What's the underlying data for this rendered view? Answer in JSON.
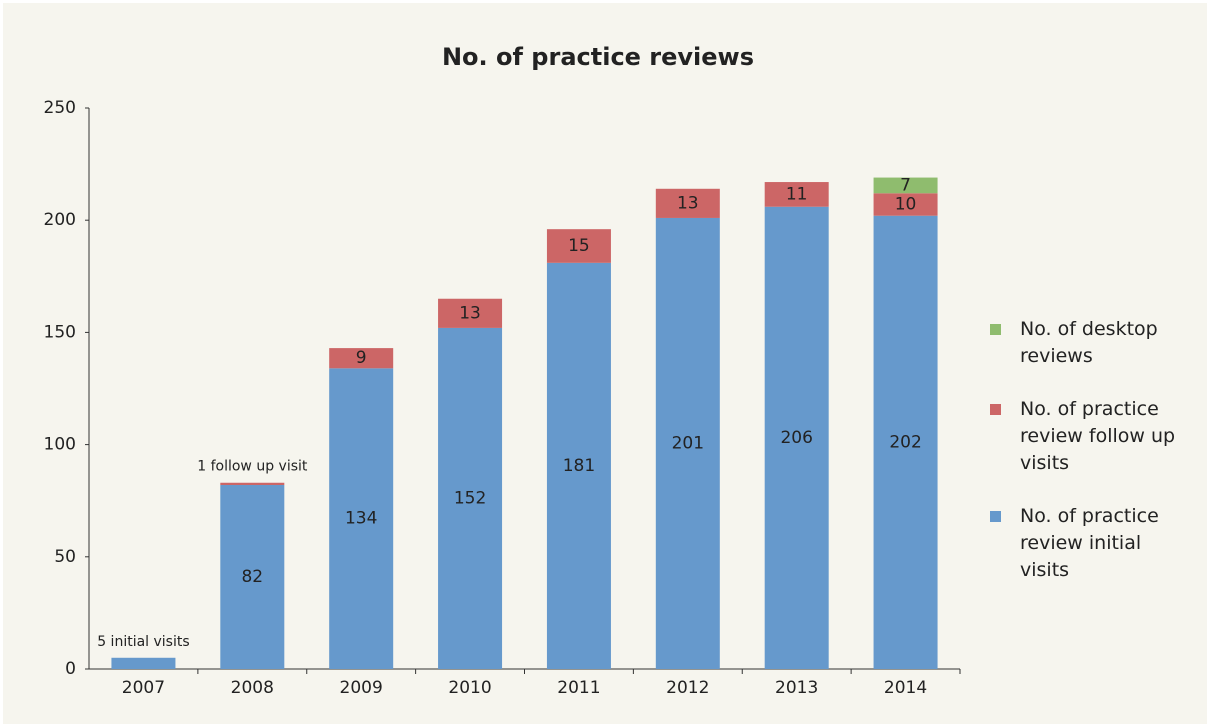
{
  "chart_data": {
    "type": "bar",
    "stacked": true,
    "title": "No. of practice reviews",
    "categories": [
      "2007",
      "2008",
      "2009",
      "2010",
      "2011",
      "2012",
      "2013",
      "2014"
    ],
    "series": [
      {
        "name": "No. of practice review initial visits",
        "color": "#6699cc",
        "values": [
          5,
          82,
          134,
          152,
          181,
          201,
          206,
          202
        ],
        "value_labels": [
          "5 initial visits",
          null,
          null,
          null,
          null,
          null,
          null,
          null
        ]
      },
      {
        "name": "No. of practice review follow up visits",
        "color": "#cc6666",
        "values": [
          null,
          1,
          9,
          13,
          15,
          13,
          11,
          10
        ],
        "value_labels": [
          null,
          "1 follow up visit",
          null,
          null,
          null,
          null,
          null,
          null
        ]
      },
      {
        "name": "No. of desktop reviews",
        "color": "#8fbc6e",
        "values": [
          null,
          null,
          null,
          null,
          null,
          null,
          null,
          7
        ]
      }
    ],
    "ylim": [
      0,
      250
    ],
    "yticks": [
      0,
      50,
      100,
      150,
      200,
      250
    ],
    "grid": false,
    "legend": "right"
  }
}
